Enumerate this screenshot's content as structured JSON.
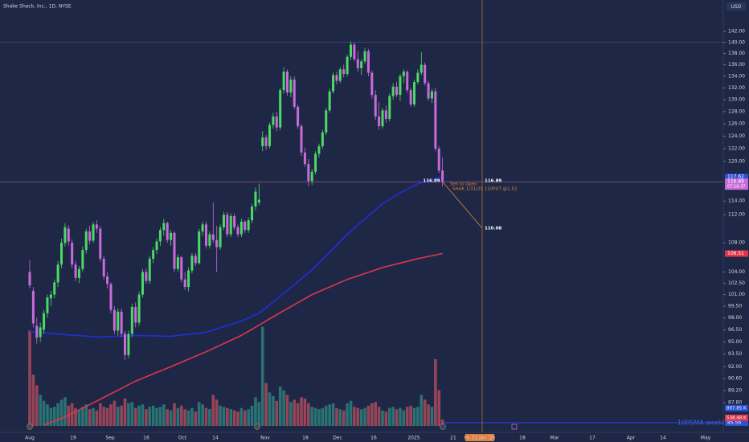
{
  "chart_data": {
    "type": "candlestick",
    "title": "Shake Shack, Inc., 1D, NYSE",
    "currency": "USD",
    "log_scale": true,
    "ylim": [
      84.5,
      147.9
    ],
    "yticks": [
      {
        "value": 142,
        "label": "142.00"
      },
      {
        "value": 140,
        "label": "140.00"
      },
      {
        "value": 138,
        "label": "138.00"
      },
      {
        "value": 136,
        "label": "136.00"
      },
      {
        "value": 134,
        "label": "134.00"
      },
      {
        "value": 132,
        "label": "132.00"
      },
      {
        "value": 130,
        "label": "130.00"
      },
      {
        "value": 128,
        "label": "128.00"
      },
      {
        "value": 126,
        "label": "126.00"
      },
      {
        "value": 124,
        "label": "124.00"
      },
      {
        "value": 122,
        "label": "122.00"
      },
      {
        "value": 120,
        "label": "120.00"
      },
      {
        "value": 114,
        "label": "114.00"
      },
      {
        "value": 112,
        "label": "112.00"
      },
      {
        "value": 108,
        "label": "108.00"
      },
      {
        "value": 104,
        "label": "104.00"
      },
      {
        "value": 102.5,
        "label": "102.50"
      },
      {
        "value": 101,
        "label": "101.00"
      },
      {
        "value": 99.5,
        "label": "99.50"
      },
      {
        "value": 98,
        "label": "98.00"
      },
      {
        "value": 96.5,
        "label": "96.50"
      },
      {
        "value": 95,
        "label": "95.00"
      },
      {
        "value": 93.5,
        "label": "93.50"
      },
      {
        "value": 92,
        "label": "92.00"
      },
      {
        "value": 90.6,
        "label": "90.60"
      },
      {
        "value": 89.2,
        "label": "89.20"
      },
      {
        "value": 87.8,
        "label": "87.80"
      }
    ],
    "x_labels": [
      "Aug",
      "19",
      "Sep",
      "16",
      "Oct",
      "14",
      "Nov",
      "18",
      "Dec",
      "16",
      "2025",
      "21",
      "Fri 31 Jan '25",
      "18",
      "Mar",
      "17",
      "Apr",
      "14",
      "May"
    ],
    "up_color": "#4cd964",
    "down_color": "#c86bd9",
    "volume_up_color": "#2b7a78",
    "volume_down_color": "#a3485a",
    "candles": [
      [
        104,
        105.6,
        101.8,
        102.2
      ],
      [
        101.5,
        102,
        96.8,
        97.3
      ],
      [
        97,
        98,
        94.8,
        95.5
      ],
      [
        95.6,
        97.4,
        95,
        96.8
      ],
      [
        96.5,
        99,
        96,
        98.6
      ],
      [
        98.6,
        101,
        98,
        100.6
      ],
      [
        100.5,
        101.5,
        99.5,
        101
      ],
      [
        101,
        103,
        100.5,
        102.6
      ],
      [
        102.6,
        105.5,
        102,
        105
      ],
      [
        105,
        108.6,
        104.5,
        108
      ],
      [
        108,
        110.8,
        107.5,
        110.2
      ],
      [
        110,
        110.5,
        107.6,
        108.2
      ],
      [
        108,
        108.5,
        104.5,
        105
      ],
      [
        105,
        105.5,
        102.8,
        103.2
      ],
      [
        103.2,
        104.8,
        102.5,
        104.4
      ],
      [
        104.4,
        107.5,
        104,
        107
      ],
      [
        107,
        110,
        106.5,
        109.6
      ],
      [
        109.6,
        110.4,
        107.8,
        108.3
      ],
      [
        108.3,
        111,
        108,
        110.6
      ],
      [
        110.6,
        111.2,
        109.4,
        110
      ],
      [
        110,
        110.4,
        105.4,
        105.8
      ],
      [
        105.8,
        106.2,
        103,
        103.4
      ],
      [
        103.4,
        104,
        101.8,
        102.4
      ],
      [
        102.4,
        102.6,
        98.6,
        99
      ],
      [
        99,
        99.5,
        96,
        96.4
      ],
      [
        96.4,
        99.2,
        95.8,
        98.8
      ],
      [
        98.8,
        99.2,
        95.6,
        96
      ],
      [
        96,
        96.4,
        92.8,
        93.4
      ],
      [
        93.4,
        96.4,
        93,
        96
      ],
      [
        96,
        99.8,
        95.6,
        99.4
      ],
      [
        99.4,
        100,
        96.8,
        97.4
      ],
      [
        97.4,
        101.4,
        97,
        101
      ],
      [
        101,
        104.4,
        100.6,
        104
      ],
      [
        104,
        104.5,
        102.4,
        102.8
      ],
      [
        102.8,
        106.2,
        102.4,
        105.8
      ],
      [
        105.8,
        107.4,
        105.2,
        107
      ],
      [
        107,
        108.6,
        106.4,
        108.2
      ],
      [
        108.2,
        110.2,
        107.6,
        109.8
      ],
      [
        109.8,
        111.4,
        109,
        110.8
      ],
      [
        110.8,
        111,
        108,
        108.4
      ],
      [
        108.4,
        109.8,
        107.6,
        109.4
      ],
      [
        109.4,
        109.6,
        104,
        104.4
      ],
      [
        104.4,
        106.4,
        104,
        106
      ],
      [
        106,
        106.2,
        102.6,
        103
      ],
      [
        103,
        104,
        101.6,
        102
      ],
      [
        102,
        104.6,
        101.4,
        104.2
      ],
      [
        104.2,
        106.6,
        103.8,
        106.2
      ],
      [
        106.2,
        106.6,
        104.8,
        105.2
      ],
      [
        105.2,
        110,
        105,
        109.6
      ],
      [
        109.6,
        111,
        109,
        110.6
      ],
      [
        110.6,
        111,
        107.2,
        107.6
      ],
      [
        107.6,
        109.6,
        107.2,
        109.2
      ],
      [
        109.2,
        113.8,
        108,
        108.4
      ],
      [
        108.4,
        110.4,
        104,
        107.4
      ],
      [
        107.4,
        110.6,
        107,
        110.2
      ],
      [
        110.2,
        112.4,
        109.8,
        112
      ],
      [
        112,
        112.4,
        108.8,
        109.2
      ],
      [
        109.2,
        112.2,
        108.8,
        111.8
      ],
      [
        111.8,
        112.2,
        109.8,
        110.2
      ],
      [
        110.2,
        110.6,
        108.8,
        109.2
      ],
      [
        109.2,
        111.4,
        108.8,
        111
      ],
      [
        111,
        111.2,
        109.4,
        109.8
      ],
      [
        109.8,
        111.6,
        109.4,
        111.2
      ],
      [
        111.2,
        113.6,
        110.8,
        113.2
      ],
      [
        113.2,
        116,
        112.6,
        115.4
      ],
      [
        113.8,
        116.6,
        113.4,
        114.2
      ],
      [
        122.4,
        124.8,
        121.6,
        123.8
      ],
      [
        123.8,
        124.2,
        121.8,
        122.4
      ],
      [
        122.4,
        126.2,
        122,
        125.8
      ],
      [
        125.8,
        127.8,
        125.2,
        127.2
      ],
      [
        127.2,
        128,
        124.8,
        125.4
      ],
      [
        125.4,
        132,
        125,
        131.6
      ],
      [
        131.6,
        135.6,
        131,
        134.8
      ],
      [
        134.8,
        135.2,
        130.6,
        131.2
      ],
      [
        131.2,
        134,
        130.4,
        133.4
      ],
      [
        133.4,
        134,
        128.4,
        128.8
      ],
      [
        128.8,
        129.2,
        125.2,
        125.6
      ],
      [
        125.6,
        126,
        120.8,
        121.4
      ],
      [
        121.4,
        122.2,
        119.2,
        119.6
      ],
      [
        119.6,
        120.4,
        116.2,
        117
      ],
      [
        117,
        118.8,
        116.4,
        118.4
      ],
      [
        118.4,
        121.6,
        118,
        121.2
      ],
      [
        121.2,
        122.8,
        120.6,
        122.4
      ],
      [
        122.4,
        125,
        122,
        124.6
      ],
      [
        124.6,
        128.6,
        124.2,
        128.2
      ],
      [
        128.2,
        131.8,
        127.8,
        131.4
      ],
      [
        131.4,
        134.6,
        131,
        134.2
      ],
      [
        134.2,
        134.8,
        132.6,
        133.2
      ],
      [
        133.2,
        135.6,
        132.8,
        135.2
      ],
      [
        135.2,
        136,
        133.8,
        134.4
      ],
      [
        134.4,
        137.8,
        134,
        137.4
      ],
      [
        137.4,
        140.2,
        136.8,
        139.6
      ],
      [
        139.6,
        140,
        136.6,
        137
      ],
      [
        137,
        138.4,
        134.8,
        135.4
      ],
      [
        135.4,
        137,
        134.2,
        136.6
      ],
      [
        136.6,
        139,
        136.2,
        138.4
      ],
      [
        138.4,
        138.8,
        134,
        134.6
      ],
      [
        134.6,
        135,
        130.2,
        130.8
      ],
      [
        130.8,
        131.6,
        126.6,
        127.2
      ],
      [
        127.2,
        129.6,
        125,
        125.6
      ],
      [
        125.6,
        128.6,
        125.2,
        128.2
      ],
      [
        128.2,
        129,
        126.2,
        126.8
      ],
      [
        126.8,
        131,
        126.4,
        130.6
      ],
      [
        130.6,
        132.8,
        130,
        132.2
      ],
      [
        132.2,
        133,
        130.4,
        130.8
      ],
      [
        130.8,
        134.4,
        129.8,
        134
      ],
      [
        134,
        135.2,
        132.8,
        134.8
      ],
      [
        134.8,
        135,
        131.2,
        131.6
      ],
      [
        131.6,
        132,
        128.8,
        129.2
      ],
      [
        129.2,
        133.4,
        128.8,
        133
      ],
      [
        133,
        135.2,
        132.6,
        134.6
      ],
      [
        134.6,
        138.2,
        134.2,
        136
      ],
      [
        136,
        136.4,
        132.4,
        132.8
      ],
      [
        132.8,
        133.2,
        129.8,
        130.2
      ],
      [
        130.2,
        131.8,
        129.4,
        131.4
      ],
      [
        131.4,
        132,
        121.6,
        122
      ],
      [
        122,
        122.4,
        118.2,
        118.6
      ],
      [
        118.6,
        120.6,
        116.2,
        116.89
      ]
    ],
    "volume": [
      8000,
      4300,
      3400,
      2600,
      2100,
      1800,
      1500,
      1600,
      1900,
      2200,
      2400,
      1700,
      1900,
      1500,
      1300,
      1600,
      1800,
      1400,
      1500,
      1300,
      1900,
      1600,
      1500,
      1800,
      2100,
      1600,
      1700,
      2300,
      1900,
      2000,
      1500,
      1700,
      1800,
      1400,
      1600,
      1700,
      1500,
      1600,
      1800,
      1400,
      1300,
      1900,
      1500,
      1700,
      1400,
      1300,
      1500,
      1200,
      2000,
      1800,
      1500,
      1400,
      2600,
      2200,
      1700,
      1600,
      1500,
      1400,
      1300,
      1200,
      1500,
      1300,
      1400,
      1700,
      2400,
      2000,
      8300,
      3600,
      2800,
      2500,
      2100,
      3300,
      3000,
      2600,
      2000,
      2200,
      1900,
      2400,
      2300,
      1900,
      1600,
      1500,
      1400,
      1500,
      1700,
      1800,
      1900,
      1500,
      1400,
      1300,
      1900,
      2100,
      1600,
      1500,
      1400,
      1500,
      1700,
      1900,
      2000,
      1600,
      1300,
      1200,
      1500,
      1600,
      1400,
      1500,
      1300,
      1600,
      1700,
      1500,
      1600,
      2600,
      2200,
      1800,
      1600,
      5600,
      3000,
      538.48
    ],
    "moving_averages": [
      {
        "color": "#1f2fd6",
        "x": [
          0,
          10,
          20,
          30,
          40,
          50,
          60,
          65,
          70,
          75,
          80,
          85,
          90,
          95,
          100,
          105,
          110,
          117
        ],
        "values": [
          96.3,
          95.9,
          95.6,
          95.8,
          95.7,
          96.2,
          97.6,
          98.6,
          100.4,
          102.3,
          104.3,
          106.7,
          109.2,
          111.4,
          113.6,
          115.2,
          116.6,
          117.62
        ]
      },
      {
        "color": "#e0354a",
        "x": [
          4,
          10,
          20,
          30,
          40,
          50,
          60,
          70,
          80,
          90,
          100,
          110,
          117
        ],
        "values": [
          85.3,
          86.2,
          88.2,
          90.3,
          92.0,
          93.8,
          95.8,
          98.4,
          101.0,
          103.0,
          104.6,
          105.8,
          106.51
        ]
      }
    ],
    "price_labels": [
      {
        "value": 117.62,
        "label": "117.62",
        "color": "#2b4fd6"
      },
      {
        "value": 116.89,
        "label": "116.89",
        "sublabel": "07:16:37",
        "color": "#c86bd9"
      },
      {
        "value": 106.51,
        "label": "106.51",
        "color": "#e0354a"
      },
      {
        "value": 85.56,
        "label": "85.56",
        "color": "#2b4fd6"
      }
    ],
    "volume_labels": [
      {
        "value": 897.85,
        "label": "897.85 K",
        "color": "#2b4fd6"
      },
      {
        "value": 538.48,
        "label": "538.48 K",
        "color": "#e0354a"
      }
    ],
    "level_lines": [
      {
        "value": 140,
        "color": "#5a6380"
      },
      {
        "value": 116.89,
        "color": "#b0607c"
      },
      {
        "value": 85.56,
        "color": "#2a3bd8",
        "label": "100SMA weekly"
      }
    ],
    "trade_annotation": {
      "entry": 116.89,
      "entry_label": "116.89",
      "entry_label_right": "116.89",
      "target": 110.08,
      "target_label": "110.08",
      "action": "Sell to Open",
      "contract": "SHAK 1/31/25 110PUT @1.52",
      "color": "#e0803a"
    }
  }
}
